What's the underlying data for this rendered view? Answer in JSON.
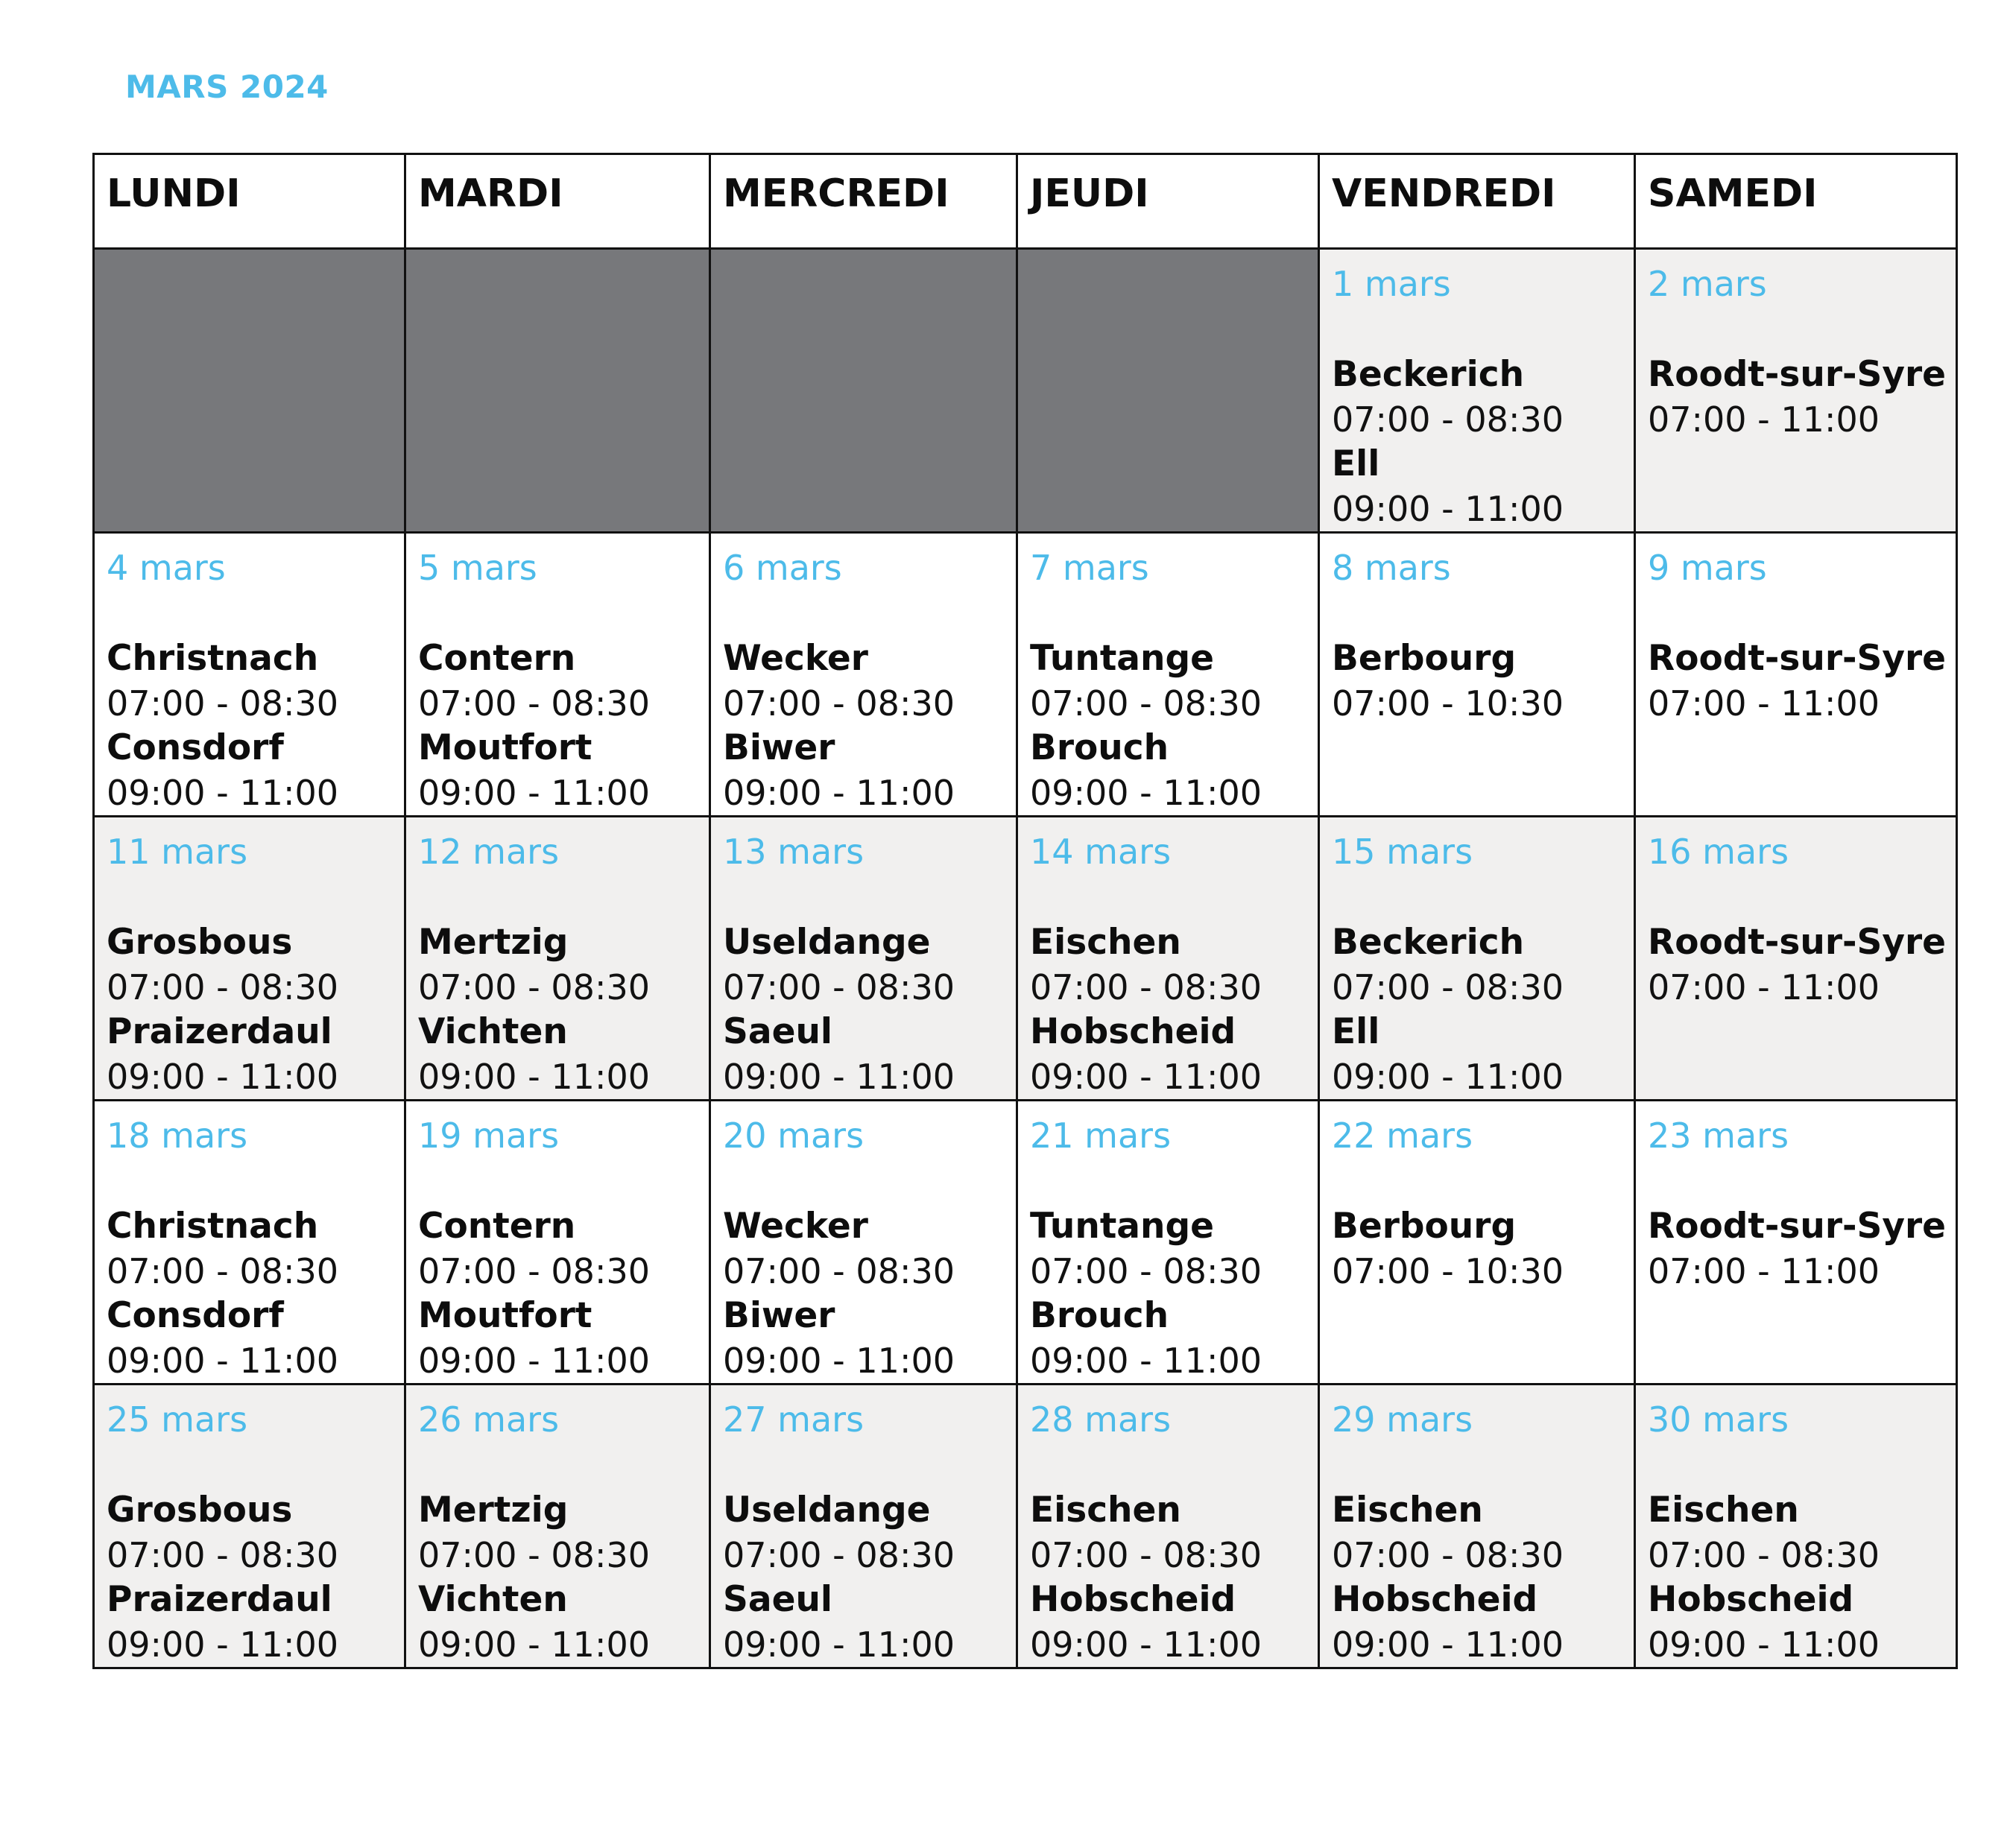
{
  "title": "MARS 2024",
  "days": [
    "LUNDI",
    "MARDI",
    "MERCREDI",
    "JEUDI",
    "VENDREDI",
    "SAMEDI"
  ],
  "weeks": [
    {
      "cells": [
        null,
        null,
        null,
        null,
        {
          "date": "1 mars",
          "entries": [
            {
              "place": "Beckerich",
              "time": "07:00 - 08:30"
            },
            {
              "place": "Ell",
              "time": "09:00 - 11:00"
            }
          ]
        },
        {
          "date": "2 mars",
          "entries": [
            {
              "place": "Roodt-sur-Syre",
              "time": "07:00 - 11:00"
            }
          ]
        }
      ]
    },
    {
      "cells": [
        {
          "date": "4 mars",
          "entries": [
            {
              "place": "Christnach",
              "time": "07:00 - 08:30"
            },
            {
              "place": "Consdorf",
              "time": "09:00 - 11:00"
            }
          ]
        },
        {
          "date": "5 mars",
          "entries": [
            {
              "place": "Contern",
              "time": "07:00 - 08:30"
            },
            {
              "place": "Moutfort",
              "time": "09:00 - 11:00"
            }
          ]
        },
        {
          "date": "6 mars",
          "entries": [
            {
              "place": "Wecker",
              "time": "07:00 - 08:30"
            },
            {
              "place": "Biwer",
              "time": "09:00 - 11:00"
            }
          ]
        },
        {
          "date": "7 mars",
          "entries": [
            {
              "place": "Tuntange",
              "time": "07:00 - 08:30"
            },
            {
              "place": "Brouch",
              "time": "09:00 - 11:00"
            }
          ]
        },
        {
          "date": "8 mars",
          "entries": [
            {
              "place": "Berbourg",
              "time": "07:00 - 10:30"
            }
          ]
        },
        {
          "date": "9 mars",
          "entries": [
            {
              "place": "Roodt-sur-Syre",
              "time": "07:00 - 11:00"
            }
          ]
        }
      ]
    },
    {
      "cells": [
        {
          "date": "11 mars",
          "entries": [
            {
              "place": "Grosbous",
              "time": "07:00 - 08:30"
            },
            {
              "place": "Praizerdaul",
              "time": "09:00 - 11:00"
            }
          ]
        },
        {
          "date": "12 mars",
          "entries": [
            {
              "place": "Mertzig",
              "time": "07:00 - 08:30"
            },
            {
              "place": "Vichten",
              "time": "09:00 - 11:00"
            }
          ]
        },
        {
          "date": "13 mars",
          "entries": [
            {
              "place": "Useldange",
              "time": "07:00 - 08:30"
            },
            {
              "place": "Saeul",
              "time": "09:00 - 11:00"
            }
          ]
        },
        {
          "date": "14 mars",
          "entries": [
            {
              "place": "Eischen",
              "time": "07:00 - 08:30"
            },
            {
              "place": "Hobscheid",
              "time": "09:00 - 11:00"
            }
          ]
        },
        {
          "date": "15 mars",
          "entries": [
            {
              "place": "Beckerich",
              "time": "07:00 - 08:30"
            },
            {
              "place": "Ell",
              "time": "09:00 - 11:00"
            }
          ]
        },
        {
          "date": "16 mars",
          "entries": [
            {
              "place": "Roodt-sur-Syre",
              "time": "07:00 - 11:00"
            }
          ]
        }
      ]
    },
    {
      "cells": [
        {
          "date": "18 mars",
          "entries": [
            {
              "place": "Christnach",
              "time": "07:00 - 08:30"
            },
            {
              "place": "Consdorf",
              "time": "09:00 - 11:00"
            }
          ]
        },
        {
          "date": "19 mars",
          "entries": [
            {
              "place": "Contern",
              "time": "07:00 - 08:30"
            },
            {
              "place": "Moutfort",
              "time": "09:00 - 11:00"
            }
          ]
        },
        {
          "date": "20 mars",
          "entries": [
            {
              "place": "Wecker",
              "time": "07:00 - 08:30"
            },
            {
              "place": "Biwer",
              "time": "09:00 - 11:00"
            }
          ]
        },
        {
          "date": "21 mars",
          "entries": [
            {
              "place": "Tuntange",
              "time": "07:00 - 08:30"
            },
            {
              "place": "Brouch",
              "time": "09:00 - 11:00"
            }
          ]
        },
        {
          "date": "22 mars",
          "entries": [
            {
              "place": "Berbourg",
              "time": "07:00 - 10:30"
            }
          ]
        },
        {
          "date": "23 mars",
          "entries": [
            {
              "place": "Roodt-sur-Syre",
              "time": "07:00 - 11:00"
            }
          ]
        }
      ]
    },
    {
      "cells": [
        {
          "date": "25 mars",
          "entries": [
            {
              "place": "Grosbous",
              "time": "07:00 - 08:30"
            },
            {
              "place": "Praizerdaul",
              "time": "09:00 - 11:00"
            }
          ]
        },
        {
          "date": "26 mars",
          "entries": [
            {
              "place": "Mertzig",
              "time": "07:00 - 08:30"
            },
            {
              "place": "Vichten",
              "time": "09:00 - 11:00"
            }
          ]
        },
        {
          "date": "27 mars",
          "entries": [
            {
              "place": "Useldange",
              "time": "07:00 - 08:30"
            },
            {
              "place": "Saeul",
              "time": "09:00 - 11:00"
            }
          ]
        },
        {
          "date": "28 mars",
          "entries": [
            {
              "place": "Eischen",
              "time": "07:00 - 08:30"
            },
            {
              "place": "Hobscheid",
              "time": "09:00 - 11:00"
            }
          ]
        },
        {
          "date": "29 mars",
          "entries": [
            {
              "place": "Eischen",
              "time": "07:00 - 08:30"
            },
            {
              "place": "Hobscheid",
              "time": "09:00 - 11:00"
            }
          ]
        },
        {
          "date": "30 mars",
          "entries": [
            {
              "place": "Eischen",
              "time": "07:00 - 08:30"
            },
            {
              "place": "Hobscheid",
              "time": "09:00 - 11:00"
            }
          ]
        }
      ]
    }
  ],
  "colors": {
    "accent": "#4dbbe9",
    "text": "#111111",
    "empty_cell": "#77787b",
    "shaded_row": "#f1f0ef",
    "border": "#111111"
  }
}
